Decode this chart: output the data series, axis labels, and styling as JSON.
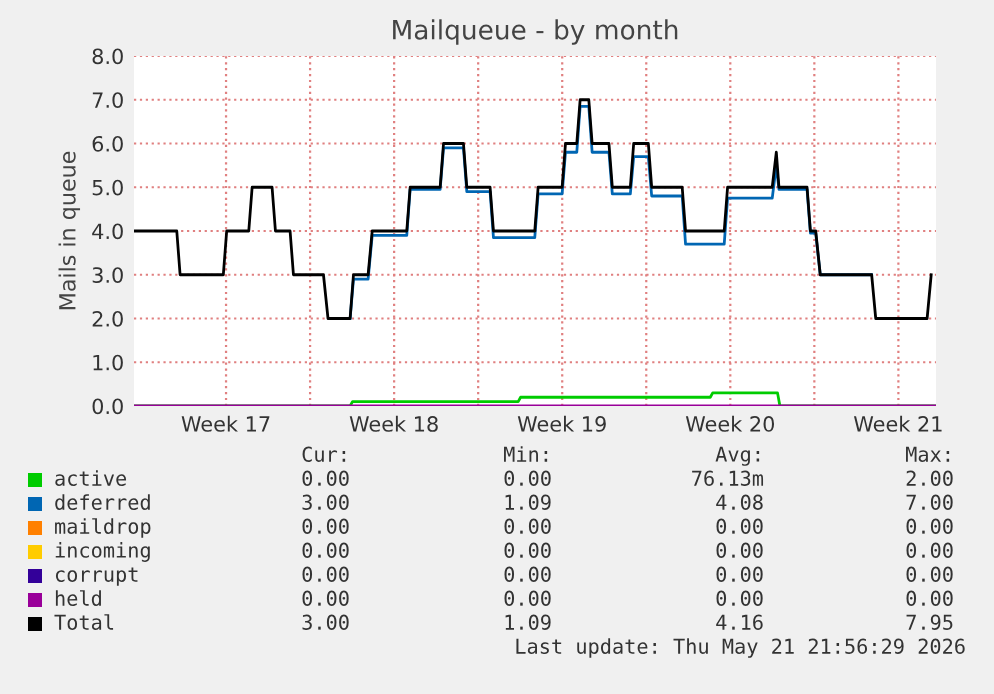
{
  "chart_data": {
    "type": "line",
    "title": "Mailqueue - by month",
    "ylabel": "Mails in queue",
    "xlim": [
      "2026-04-19T16:00",
      "2026-05-23T01:36"
    ],
    "ylim": [
      0,
      8
    ],
    "xticks": [
      {
        "value": "2026-04-23T12:00",
        "label": "Week 17"
      },
      {
        "value": "2026-04-30T12:00",
        "label": "Week 18"
      },
      {
        "value": "2026-05-07T12:00",
        "label": "Week 19"
      },
      {
        "value": "2026-05-14T12:00",
        "label": "Week 20"
      },
      {
        "value": "2026-05-21T12:00",
        "label": "Week 21"
      },
      {
        "value": "2026-04-27",
        "label": null
      },
      {
        "value": "2026-05-04",
        "label": null
      },
      {
        "value": "2026-05-11",
        "label": null
      },
      {
        "value": "2026-05-18",
        "label": null
      }
    ],
    "yticks": [
      {
        "value": 0,
        "label": "0.0"
      },
      {
        "value": 1,
        "label": "1.0"
      },
      {
        "value": 2,
        "label": "2.0"
      },
      {
        "value": 3,
        "label": "3.0"
      },
      {
        "value": 4,
        "label": "4.0"
      },
      {
        "value": 5,
        "label": "5.0"
      },
      {
        "value": 6,
        "label": "6.0"
      },
      {
        "value": 7,
        "label": "7.0"
      },
      {
        "value": 8,
        "label": "8.0"
      }
    ],
    "grid": true,
    "legend": "bottom",
    "marker": "none",
    "line_style": "solid",
    "series": [
      {
        "name": "active",
        "color": "#00cc00",
        "x": [
          "2026-04-19T16:00",
          "2026-04-28T16:00",
          "2026-04-28T18:24",
          "2026-05-01T16:00",
          "2026-05-05T16:00",
          "2026-05-05T18:24",
          "2026-05-09T16:00",
          "2026-05-13T16:00",
          "2026-05-13T18:24",
          "2026-05-16T06:24",
          "2026-05-16T11:12",
          "2026-05-16T13:36",
          "2026-05-23T01:36"
        ],
        "values": [
          0,
          0,
          0.1,
          0.1,
          0.1,
          0.2,
          0.2,
          0.2,
          0.3,
          0.3,
          0.3,
          0,
          0
        ]
      },
      {
        "name": "deferred",
        "color": "#0066b3",
        "x": [
          "2026-04-28T16:00",
          "2026-04-28T19:22",
          "2026-04-29T10:00",
          "2026-04-29T14:05",
          "2026-05-01T00:38",
          "2026-05-01T04:00",
          "2026-05-02T10:00",
          "2026-05-02T13:22",
          "2026-05-03T09:17",
          "2026-05-03T12:38",
          "2026-05-04T11:55",
          "2026-05-04T15:17",
          "2026-05-06T08:34",
          "2026-05-06T11:55",
          "2026-05-07T11:55",
          "2026-05-07T15:17",
          "2026-05-08T02:34",
          "2026-05-08T05:55",
          "2026-05-08T14:34",
          "2026-05-08T17:55",
          "2026-05-09T10:43",
          "2026-05-09T14:05",
          "2026-05-10T08:05",
          "2026-05-10T11:26",
          "2026-05-11T02:05",
          "2026-05-11T05:26",
          "2026-05-12T11:55",
          "2026-05-12T15:17",
          "2026-05-14T05:55",
          "2026-05-14T09:17",
          "2026-05-16T05:55",
          "2026-05-16T10:00",
          "2026-05-16T12:38",
          "2026-05-17T16:43",
          "2026-05-17T20:05",
          "2026-05-18T01:22",
          "2026-05-18T05:55",
          "2026-05-20T09:17"
        ],
        "values": [
          2,
          2.9,
          2.9,
          3.9,
          3.9,
          4.95,
          4.95,
          5.9,
          5.9,
          4.9,
          4.9,
          3.85,
          3.85,
          4.85,
          4.85,
          5.8,
          5.8,
          6.85,
          6.85,
          5.8,
          5.8,
          4.85,
          4.85,
          5.7,
          5.7,
          4.8,
          4.8,
          3.7,
          3.7,
          4.75,
          4.75,
          5.5,
          4.95,
          4.95,
          3.95,
          3.95,
          3,
          3
        ]
      },
      {
        "name": "maildrop",
        "color": "#ff8000"
      },
      {
        "name": "incoming",
        "color": "#ffcc00"
      },
      {
        "name": "corrupt",
        "color": "#330099"
      },
      {
        "name": "held",
        "color": "#990099",
        "x": [
          "2026-04-19T16:00",
          "2026-05-23T01:36"
        ],
        "values": [
          0,
          0
        ]
      },
      {
        "name": "Total",
        "color": "#000000",
        "x": [
          "2026-04-19T16:00",
          "2026-04-21T10:45",
          "2026-04-21T14:05",
          "2026-04-23T09:17",
          "2026-04-23T12:38",
          "2026-04-24T10:43",
          "2026-04-24T14:05",
          "2026-04-25T10:00",
          "2026-04-25T13:22",
          "2026-04-26T04:00",
          "2026-04-26T07:22",
          "2026-04-27T13:22",
          "2026-04-27T17:55",
          "2026-04-28T16:00",
          "2026-04-28T19:22",
          "2026-04-29T10:00",
          "2026-04-29T14:05",
          "2026-05-01T00:38",
          "2026-05-01T04:00",
          "2026-05-02T10:00",
          "2026-05-02T13:22",
          "2026-05-03T09:17",
          "2026-05-03T12:38",
          "2026-05-04T11:55",
          "2026-05-04T15:17",
          "2026-05-06T08:34",
          "2026-05-06T11:55",
          "2026-05-07T11:55",
          "2026-05-07T15:17",
          "2026-05-08T02:34",
          "2026-05-08T05:55",
          "2026-05-08T14:34",
          "2026-05-08T17:55",
          "2026-05-09T10:43",
          "2026-05-09T14:05",
          "2026-05-10T08:05",
          "2026-05-10T11:26",
          "2026-05-11T02:05",
          "2026-05-11T05:26",
          "2026-05-12T11:55",
          "2026-05-12T15:17",
          "2026-05-14T05:55",
          "2026-05-14T09:17",
          "2026-05-16T05:55",
          "2026-05-16T10:00",
          "2026-05-16T12:38",
          "2026-05-17T16:43",
          "2026-05-17T20:05",
          "2026-05-18T01:22",
          "2026-05-18T05:55",
          "2026-05-20T09:17",
          "2026-05-20T13:22",
          "2026-05-22T16:43",
          "2026-05-22T20:48"
        ],
        "values": [
          4,
          4,
          3,
          3,
          4,
          4,
          5,
          5,
          4,
          4,
          3,
          3,
          2,
          2,
          3,
          3,
          4,
          4,
          5,
          5,
          6,
          6,
          5,
          5,
          4,
          4,
          5,
          5,
          6,
          6,
          7,
          7,
          6,
          6,
          5,
          5,
          6,
          6,
          5,
          5,
          4,
          4,
          5,
          5,
          5.8,
          5,
          5,
          4,
          4,
          3,
          3,
          2,
          2,
          3
        ]
      }
    ],
    "annotations": [
      "Cur:",
      "Min:",
      "Avg:",
      "Max:",
      "0.00",
      "0.00",
      "76.13m",
      "2.00",
      "3.00",
      "1.09",
      "4.08",
      "7.00",
      "0.00",
      "0.00",
      "0.00",
      "0.00",
      "0.00",
      "0.00",
      "0.00",
      "0.00",
      "0.00",
      "0.00",
      "0.00",
      "0.00",
      "0.00",
      "0.00",
      "0.00",
      "0.00",
      "3.00",
      "1.09",
      "4.16",
      "7.95",
      "Last update: Thu May 21 21:56:29 2026"
    ]
  }
}
